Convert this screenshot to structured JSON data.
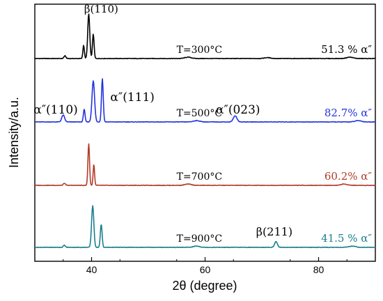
{
  "chart_data": {
    "type": "line",
    "title": "",
    "xlabel": "2θ (degree)",
    "ylabel": "Intensity/a.u.",
    "xlim": [
      30,
      90
    ],
    "x_ticks": [
      "40",
      "60",
      "80"
    ],
    "x_tick_values": [
      40,
      60,
      80
    ],
    "grid": false,
    "series": [
      {
        "name": "T=300°C",
        "phase_label": "51.3 % α″",
        "color": "#000000",
        "peaks": [
          {
            "x": 35.3,
            "h": 0.06,
            "w": 0.25
          },
          {
            "x": 38.6,
            "h": 0.3,
            "w": 0.18
          },
          {
            "x": 39.5,
            "h": 1.0,
            "w": 0.25
          },
          {
            "x": 40.3,
            "h": 0.55,
            "w": 0.2
          },
          {
            "x": 57.0,
            "h": 0.03,
            "w": 0.8
          },
          {
            "x": 71.0,
            "h": 0.02,
            "w": 0.8
          },
          {
            "x": 85.5,
            "h": 0.03,
            "w": 0.8
          }
        ]
      },
      {
        "name": "T=500°C",
        "phase_label": "82.7% α″",
        "color": "#2233dd",
        "peaks": [
          {
            "x": 35.0,
            "h": 0.16,
            "w": 0.35
          },
          {
            "x": 38.7,
            "h": 0.3,
            "w": 0.2
          },
          {
            "x": 40.3,
            "h": 0.95,
            "w": 0.32
          },
          {
            "x": 41.9,
            "h": 1.0,
            "w": 0.22
          },
          {
            "x": 58.5,
            "h": 0.03,
            "w": 0.8
          },
          {
            "x": 65.3,
            "h": 0.14,
            "w": 0.45
          },
          {
            "x": 87.0,
            "h": 0.03,
            "w": 0.8
          }
        ]
      },
      {
        "name": "T=700°C",
        "phase_label": "60.2% α″",
        "color": "#b23a2a",
        "peaks": [
          {
            "x": 35.2,
            "h": 0.05,
            "w": 0.25
          },
          {
            "x": 39.5,
            "h": 1.0,
            "w": 0.2
          },
          {
            "x": 40.4,
            "h": 0.5,
            "w": 0.18
          },
          {
            "x": 57.0,
            "h": 0.03,
            "w": 0.8
          },
          {
            "x": 84.5,
            "h": 0.03,
            "w": 0.8
          }
        ]
      },
      {
        "name": "T=900°C",
        "phase_label": "41.5 % α″",
        "color": "#1a7f8c",
        "peaks": [
          {
            "x": 35.2,
            "h": 0.05,
            "w": 0.25
          },
          {
            "x": 40.2,
            "h": 1.0,
            "w": 0.28
          },
          {
            "x": 41.7,
            "h": 0.55,
            "w": 0.22
          },
          {
            "x": 58.5,
            "h": 0.03,
            "w": 0.8
          },
          {
            "x": 72.5,
            "h": 0.14,
            "w": 0.35
          },
          {
            "x": 86.0,
            "h": 0.03,
            "w": 0.8
          }
        ]
      }
    ],
    "annotations": [
      {
        "text": "β(110)",
        "x": 41.3,
        "series": 0
      },
      {
        "text": "α″(110)",
        "x": 34.5,
        "series": 1
      },
      {
        "text": "α″(111)",
        "x": 45.0,
        "series": 1
      },
      {
        "text": "α″(023)",
        "x": 66.5,
        "series": 1
      },
      {
        "text": "β(211)",
        "x": 72.0,
        "series": 3
      }
    ]
  }
}
